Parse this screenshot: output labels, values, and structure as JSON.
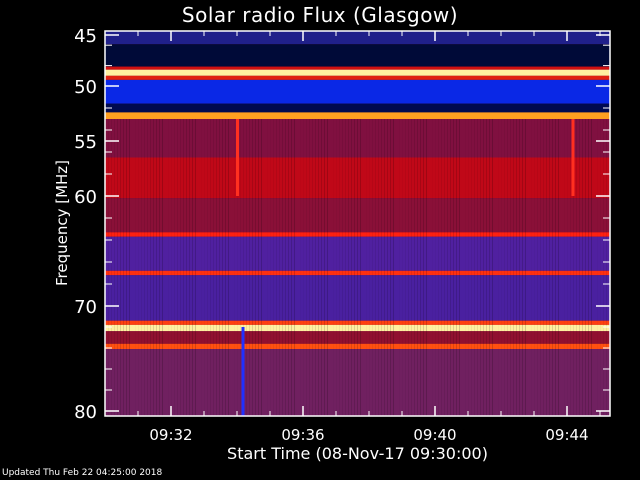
{
  "chart_data": {
    "type": "heatmap",
    "title": "Solar radio Flux (Glasgow)",
    "xlabel": "Start Time (08-Nov-17 09:30:00)",
    "ylabel": "Frequency [MHz]",
    "xlim": [
      "09:30",
      "09:45:18"
    ],
    "ylim": [
      80,
      45
    ],
    "x_ticks": [
      "09:32",
      "09:36",
      "09:40",
      "09:44"
    ],
    "y_ticks": [
      45,
      50,
      55,
      60,
      70,
      80
    ],
    "grid": false,
    "frequency_bands": [
      {
        "from": 44.6,
        "to": 45.9,
        "color": "#20208a"
      },
      {
        "from": 45.9,
        "to": 48.1,
        "color": "#000a38"
      },
      {
        "from": 48.1,
        "to": 48.4,
        "color": "#d01010"
      },
      {
        "from": 48.4,
        "to": 49.0,
        "color": "#fff0a0"
      },
      {
        "from": 49.0,
        "to": 49.4,
        "color": "#e02010"
      },
      {
        "from": 49.4,
        "to": 51.6,
        "color": "#0a28e6"
      },
      {
        "from": 51.6,
        "to": 52.4,
        "color": "#000a50"
      },
      {
        "from": 52.4,
        "to": 53.0,
        "color": "#ffa020"
      },
      {
        "from": 53.0,
        "to": 56.5,
        "color": "#801040"
      },
      {
        "from": 56.5,
        "to": 60.2,
        "color": "#c00818"
      },
      {
        "from": 60.2,
        "to": 63.3,
        "color": "#8a1038"
      },
      {
        "from": 63.3,
        "to": 63.7,
        "color": "#ff2010"
      },
      {
        "from": 63.7,
        "to": 66.8,
        "color": "#5020a0"
      },
      {
        "from": 66.8,
        "to": 67.2,
        "color": "#ff3010"
      },
      {
        "from": 67.2,
        "to": 71.4,
        "color": "#4a20a0"
      },
      {
        "from": 71.4,
        "to": 71.8,
        "color": "#ff4010"
      },
      {
        "from": 71.8,
        "to": 72.4,
        "color": "#fff0a0"
      },
      {
        "from": 72.4,
        "to": 73.6,
        "color": "#901030"
      },
      {
        "from": 73.6,
        "to": 74.1,
        "color": "#ff5010"
      },
      {
        "from": 74.1,
        "to": 80.3,
        "color": "#702060"
      }
    ],
    "time_features": [
      {
        "time": "09:34:00",
        "from": 53,
        "to": 60,
        "color": "#ff3020"
      },
      {
        "time": "09:44:10",
        "from": 53,
        "to": 60,
        "color": "#ff3020"
      },
      {
        "time": "09:34:10",
        "from": 72,
        "to": 80.3,
        "color": "#2030ff"
      }
    ]
  },
  "footer": {
    "updated": "Updated Thu Feb 22 04:25:00 2018"
  }
}
